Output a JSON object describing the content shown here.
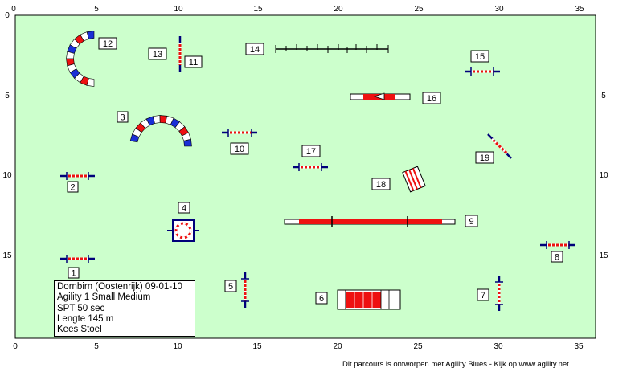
{
  "ruler": {
    "top_ticks": [
      "0",
      "5",
      "10",
      "15",
      "20",
      "25",
      "30",
      "35"
    ],
    "bottom_ticks": [
      "0",
      "5",
      "10",
      "15",
      "20",
      "25",
      "30",
      "35"
    ],
    "left_ticks": [
      "0",
      "5",
      "10",
      "15"
    ],
    "right_ticks": [
      "5",
      "10",
      "15"
    ]
  },
  "colors": {
    "field": "#ccffcc",
    "bar_red": "#ee1111",
    "pole_blue": "#00007a",
    "tunnel_blue": "#1a2fd6"
  },
  "obstacles": [
    {
      "number": "1",
      "type": "hurdle"
    },
    {
      "number": "2",
      "type": "hurdle"
    },
    {
      "number": "3",
      "type": "tunnel"
    },
    {
      "number": "4",
      "type": "tire"
    },
    {
      "number": "5",
      "type": "hurdle"
    },
    {
      "number": "6",
      "type": "collapsed-tunnel"
    },
    {
      "number": "7",
      "type": "hurdle"
    },
    {
      "number": "8",
      "type": "hurdle"
    },
    {
      "number": "9",
      "type": "dog-walk"
    },
    {
      "number": "10",
      "type": "hurdle"
    },
    {
      "number": "11",
      "type": "hurdle"
    },
    {
      "number": "12",
      "type": "tunnel"
    },
    {
      "number": "13",
      "type": "hurdle"
    },
    {
      "number": "14",
      "type": "weave-poles"
    },
    {
      "number": "15",
      "type": "hurdle"
    },
    {
      "number": "16",
      "type": "seesaw"
    },
    {
      "number": "17",
      "type": "hurdle"
    },
    {
      "number": "18",
      "type": "wall"
    },
    {
      "number": "19",
      "type": "hurdle"
    }
  ],
  "info": {
    "line1": "Dornbirn (Oostenrijk) 09-01-10",
    "line2": "Agility 1 Small Medium",
    "line3": "SPT 50 sec",
    "line4": "Lengte 145 m",
    "line5": "Kees Stoel"
  },
  "footer": "Dit parcours is ontworpen met Agility Blues - Kijk op www.agility.net"
}
